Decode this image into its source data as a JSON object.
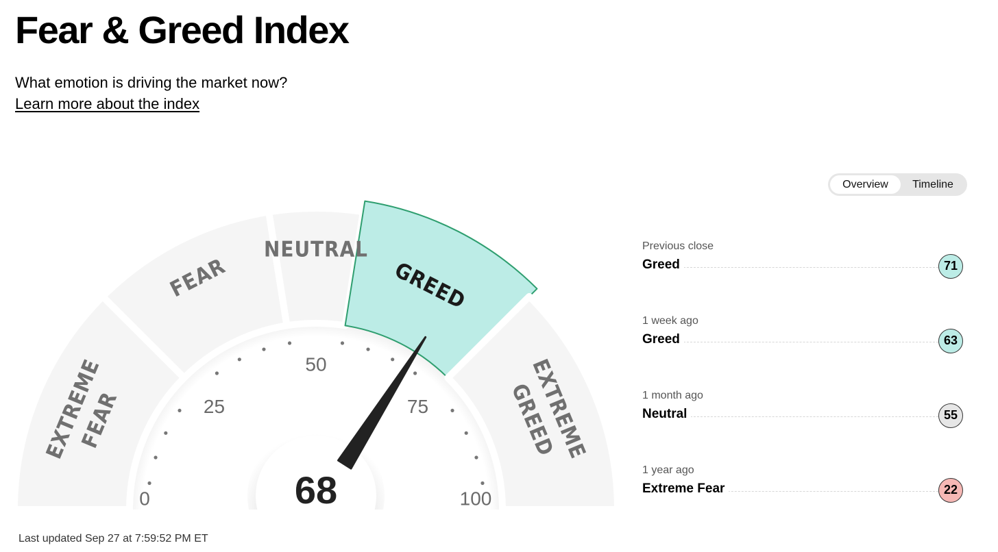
{
  "header": {
    "title": "Fear & Greed Index",
    "subtitle": "What emotion is driving the market now?",
    "learn_link": "Learn more about the index"
  },
  "view_toggle": {
    "options": [
      "Overview",
      "Timeline"
    ],
    "selected": "Overview"
  },
  "gauge": {
    "value": 68,
    "value_label": "68",
    "min": 0,
    "max": 100,
    "ticks": [
      "0",
      "25",
      "50",
      "75",
      "100"
    ],
    "active_zone": "GREED",
    "zones": [
      {
        "line1": "EXTREME",
        "line2": "FEAR",
        "from": 0,
        "to": 25
      },
      {
        "line1": "FEAR",
        "line2": "",
        "from": 25,
        "to": 45
      },
      {
        "line1": "NEUTRAL",
        "line2": "",
        "from": 45,
        "to": 55
      },
      {
        "line1": "GREED",
        "line2": "",
        "from": 55,
        "to": 75
      },
      {
        "line1": "EXTREME",
        "line2": "GREED",
        "from": 75,
        "to": 100
      }
    ],
    "colors": {
      "zone_fill": "#f5f5f5",
      "active_fill": "#bcece6",
      "active_stroke": "#2e9e6f",
      "zone_text": "#707070",
      "active_text": "#1a1a1a",
      "needle": "#222222"
    }
  },
  "last_updated": "Last updated Sep 27 at 7:59:52 PM ET",
  "history": [
    {
      "when": "Previous close",
      "label": "Greed",
      "value": "71",
      "color": "#bcece6"
    },
    {
      "when": "1 week ago",
      "label": "Greed",
      "value": "63",
      "color": "#bcece6"
    },
    {
      "when": "1 month ago",
      "label": "Neutral",
      "value": "55",
      "color": "#e6e6e6"
    },
    {
      "when": "1 year ago",
      "label": "Extreme Fear",
      "value": "22",
      "color": "#f6b8b5"
    }
  ]
}
